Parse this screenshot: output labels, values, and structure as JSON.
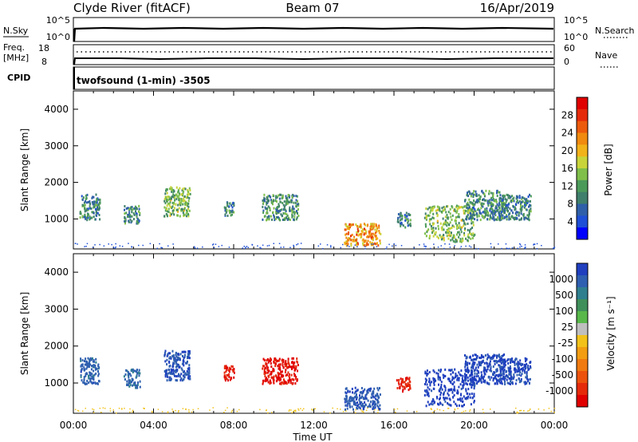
{
  "header": {
    "station": "Clyde River (fitACF)",
    "beam": "Beam 07",
    "date": "16/Apr/2019"
  },
  "sky_panel": {
    "left_label": "N.Sky",
    "left_ticks": [
      "10^5",
      "10^0"
    ],
    "right_label": "N.Search",
    "right_ticks": [
      "10^5",
      "10^0"
    ]
  },
  "freq_panel": {
    "left_label_1": "Freq.",
    "left_label_2": "[MHz]",
    "left_ticks": [
      "18",
      "8"
    ],
    "right_label": "Nave",
    "right_ticks": [
      "60",
      "0"
    ]
  },
  "cpid": {
    "label": "CPID",
    "program": "twofsound (1-min) -3505"
  },
  "chart_data": [
    {
      "type": "heatmap",
      "quantity": "Power",
      "ylabel": "Slant Range [km]",
      "xlabel": "",
      "ylim": [
        180,
        4500
      ],
      "xlim": [
        0,
        24
      ],
      "y_ticks": [
        1000,
        2000,
        3000,
        4000
      ],
      "colorbar": {
        "label": "Power [dB]",
        "ticks": [
          4,
          8,
          12,
          16,
          20,
          24,
          28
        ],
        "colors": [
          "#0000ff",
          "#1e4fd6",
          "#2f5fa8",
          "#3f7f6b",
          "#4c9a5a",
          "#7fbf4a",
          "#c9d43a",
          "#f2b21a",
          "#f08a10",
          "#ec5a0c",
          "#e52a0a",
          "#e00000"
        ]
      },
      "scatter_regions": [
        {
          "t": [
            0.3,
            1.3
          ],
          "range": [
            1000,
            1700
          ],
          "mean_value": 9
        },
        {
          "t": [
            2.5,
            3.3
          ],
          "range": [
            900,
            1400
          ],
          "mean_value": 10
        },
        {
          "t": [
            4.5,
            5.8
          ],
          "range": [
            1100,
            1900
          ],
          "mean_value": 14
        },
        {
          "t": [
            7.5,
            8.0
          ],
          "range": [
            1100,
            1500
          ],
          "mean_value": 9
        },
        {
          "t": [
            9.4,
            11.2
          ],
          "range": [
            1000,
            1700
          ],
          "mean_value": 11
        },
        {
          "t": [
            13.5,
            15.3
          ],
          "range": [
            300,
            900
          ],
          "mean_value": 22
        },
        {
          "t": [
            16.1,
            16.8
          ],
          "range": [
            800,
            1200
          ],
          "mean_value": 9
        },
        {
          "t": [
            17.5,
            20.0
          ],
          "range": [
            400,
            1400
          ],
          "mean_value": 14
        },
        {
          "t": [
            19.5,
            21.5
          ],
          "range": [
            1000,
            1800
          ],
          "mean_value": 10
        },
        {
          "t": [
            21.2,
            22.8
          ],
          "range": [
            1000,
            1700
          ],
          "mean_value": 9
        }
      ]
    },
    {
      "type": "heatmap",
      "quantity": "Velocity",
      "ylabel": "Slant Range [km]",
      "xlabel": "Time UT",
      "ylim": [
        180,
        4500
      ],
      "xlim": [
        0,
        24
      ],
      "x_ticks": [
        "00:00",
        "04:00",
        "08:00",
        "12:00",
        "16:00",
        "20:00",
        "00:00"
      ],
      "y_ticks": [
        1000,
        2000,
        3000,
        4000
      ],
      "colorbar": {
        "label": "Velocity [m s⁻¹]",
        "ticks": [
          1000,
          500,
          100,
          25,
          -25,
          -100,
          -500,
          -1000
        ],
        "colors": [
          "#1f3fbf",
          "#2f5fb0",
          "#2f7f8f",
          "#3f8f5a",
          "#58b84a",
          "#bfbfbf",
          "#f2c21a",
          "#f29d12",
          "#f07a10",
          "#ec520c",
          "#e52a0a",
          "#e00000"
        ]
      },
      "scatter_regions": [
        {
          "t": [
            0.3,
            1.3
          ],
          "range": [
            1000,
            1700
          ],
          "mean_value": 200
        },
        {
          "t": [
            2.5,
            3.3
          ],
          "range": [
            900,
            1400
          ],
          "mean_value": 150
        },
        {
          "t": [
            4.5,
            5.8
          ],
          "range": [
            1100,
            1900
          ],
          "mean_value": 300
        },
        {
          "t": [
            7.5,
            8.0
          ],
          "range": [
            1100,
            1500
          ],
          "mean_value": -300
        },
        {
          "t": [
            9.4,
            11.2
          ],
          "range": [
            1000,
            1700
          ],
          "mean_value": -400
        },
        {
          "t": [
            13.5,
            15.3
          ],
          "range": [
            300,
            900
          ],
          "mean_value": 250
        },
        {
          "t": [
            16.1,
            16.8
          ],
          "range": [
            800,
            1200
          ],
          "mean_value": -300
        },
        {
          "t": [
            17.5,
            20.0
          ],
          "range": [
            400,
            1400
          ],
          "mean_value": 600
        },
        {
          "t": [
            19.5,
            21.5
          ],
          "range": [
            1000,
            1800
          ],
          "mean_value": 500
        },
        {
          "t": [
            21.2,
            22.8
          ],
          "range": [
            1000,
            1700
          ],
          "mean_value": 400
        }
      ]
    }
  ]
}
